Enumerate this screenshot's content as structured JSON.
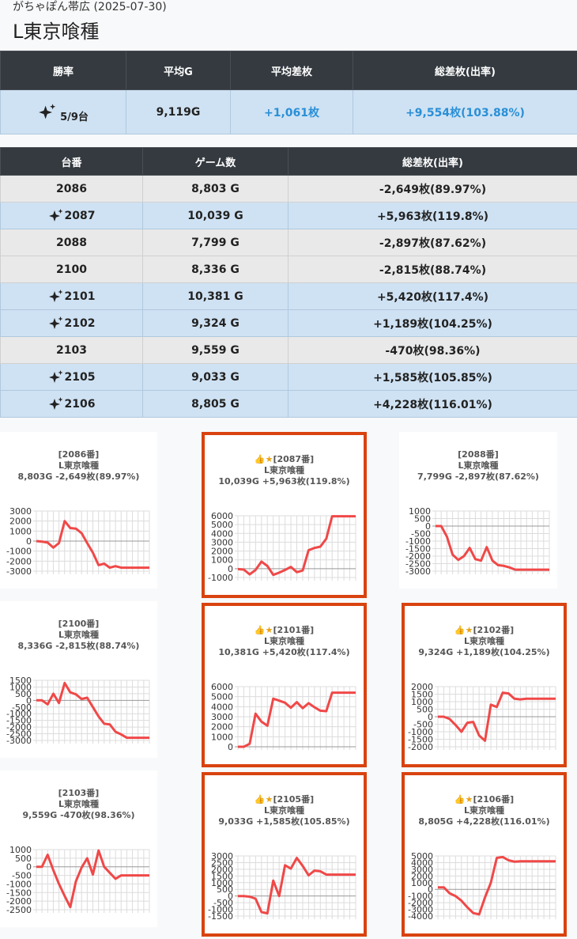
{
  "header": {
    "subtitle": "がちゃぽん帯広 (2025-07-30)",
    "title": "L東京喰種"
  },
  "summary": {
    "headers": [
      "勝率",
      "平均G",
      "平均差枚",
      "総差枚(出率)"
    ],
    "win_rate": "5/9台",
    "avg_games": "9,119G",
    "avg_diff": "+1,061枚",
    "total_diff": "+9,554枚(103.88%)"
  },
  "machines": {
    "headers": [
      "台番",
      "ゲーム数",
      "総差枚(出率)"
    ],
    "rows": [
      {
        "id": "2086",
        "games": "8,803 G",
        "diff": "-2,649枚(89.97%)",
        "win": false
      },
      {
        "id": "2087",
        "games": "10,039 G",
        "diff": "+5,963枚(119.8%)",
        "win": true
      },
      {
        "id": "2088",
        "games": "7,799 G",
        "diff": "-2,897枚(87.62%)",
        "win": false
      },
      {
        "id": "2100",
        "games": "8,336 G",
        "diff": "-2,815枚(88.74%)",
        "win": false
      },
      {
        "id": "2101",
        "games": "10,381 G",
        "diff": "+5,420枚(117.4%)",
        "win": true
      },
      {
        "id": "2102",
        "games": "9,324 G",
        "diff": "+1,189枚(104.25%)",
        "win": true
      },
      {
        "id": "2103",
        "games": "9,559 G",
        "diff": "-470枚(98.36%)",
        "win": false
      },
      {
        "id": "2105",
        "games": "9,033 G",
        "diff": "+1,585枚(105.85%)",
        "win": true
      },
      {
        "id": "2106",
        "games": "8,805 G",
        "diff": "+4,228枚(116.01%)",
        "win": true
      }
    ]
  },
  "charts": [
    {
      "label": "[2086番]",
      "model": "L東京喰種",
      "stats": "8,803G -2,649枚(89.97%)",
      "highlight": false,
      "ticks": [
        "3000",
        "2000",
        "1000",
        "0",
        "-1000",
        "-2000",
        "-3000"
      ],
      "ylim": [
        -3000,
        3000
      ],
      "values": [
        0,
        -50,
        -150,
        -650,
        -200,
        2000,
        1300,
        1250,
        800,
        -200,
        -1150,
        -2400,
        -2250,
        -2650,
        -2500,
        -2650,
        -2650,
        -2650,
        -2650,
        -2650,
        -2650
      ]
    },
    {
      "label": "[2087番]",
      "model": "L東京喰種",
      "stats": "10,039G +5,963枚(119.8%)",
      "highlight": true,
      "icons": "👍★",
      "ticks": [
        "6000",
        "5000",
        "4000",
        "3000",
        "2000",
        "1000",
        "0",
        "-1000"
      ],
      "ylim": [
        -1000,
        6000
      ],
      "values": [
        -50,
        -100,
        -650,
        -150,
        800,
        300,
        -700,
        -450,
        -150,
        200,
        -400,
        -200,
        2100,
        2350,
        2500,
        3400,
        5950,
        5950,
        5950,
        5950,
        5950
      ]
    },
    {
      "label": "[2088番]",
      "model": "L東京喰種",
      "stats": "7,799G -2,897枚(87.62%)",
      "highlight": false,
      "ticks": [
        "1000",
        "500",
        "0",
        "-500",
        "-1000",
        "-1500",
        "-2000",
        "-2500",
        "-3000"
      ],
      "ylim": [
        -3000,
        1000
      ],
      "values": [
        0,
        0,
        -700,
        -1900,
        -2250,
        -2000,
        -1450,
        -2200,
        -2300,
        -1400,
        -2300,
        -2600,
        -2650,
        -2750,
        -2900,
        -2900,
        -2900,
        -2900,
        -2900,
        -2900,
        -2900
      ]
    },
    {
      "label": "[2100番]",
      "model": "L東京喰種",
      "stats": "8,336G -2,815枚(88.74%)",
      "highlight": false,
      "ticks": [
        "1500",
        "1000",
        "500",
        "0",
        "-500",
        "-1000",
        "-1500",
        "-2000",
        "-2500",
        "-3000"
      ],
      "ylim": [
        -3000,
        1500
      ],
      "values": [
        0,
        0,
        -300,
        500,
        -200,
        1300,
        600,
        450,
        100,
        200,
        -500,
        -1200,
        -1750,
        -1800,
        -2350,
        -2550,
        -2800,
        -2800,
        -2800,
        -2800,
        -2800
      ]
    },
    {
      "label": "[2101番]",
      "model": "L東京喰種",
      "stats": "10,381G +5,420枚(117.4%)",
      "highlight": true,
      "icons": "👍★",
      "ticks": [
        "6000",
        "5000",
        "4000",
        "3000",
        "2000",
        "1000",
        "0"
      ],
      "ylim": [
        0,
        6000
      ],
      "values": [
        0,
        0,
        300,
        3300,
        2500,
        2100,
        4800,
        4600,
        4400,
        3900,
        4450,
        3850,
        4350,
        3950,
        3600,
        3550,
        5400,
        5400,
        5400,
        5400,
        5400
      ]
    },
    {
      "label": "[2102番]",
      "model": "L東京喰種",
      "stats": "9,324G +1,189枚(104.25%)",
      "highlight": true,
      "icons": "👍★",
      "ticks": [
        "2000",
        "1500",
        "1000",
        "500",
        "0",
        "-500",
        "-1000",
        "-1500",
        "-2000"
      ],
      "ylim": [
        -2000,
        2000
      ],
      "values": [
        0,
        0,
        -150,
        -550,
        -1000,
        -400,
        -350,
        -1250,
        -1600,
        800,
        650,
        1600,
        1550,
        1200,
        1150,
        1200,
        1200,
        1200,
        1200,
        1200,
        1200
      ]
    },
    {
      "label": "[2103番]",
      "model": "L東京喰種",
      "stats": "9,559G -470枚(98.36%)",
      "highlight": false,
      "ticks": [
        "1000",
        "500",
        "0",
        "-500",
        "-1000",
        "-1500",
        "-2000",
        "-2500"
      ],
      "ylim": [
        -2500,
        1000
      ],
      "values": [
        0,
        0,
        700,
        -200,
        -1000,
        -1700,
        -2350,
        -850,
        -50,
        500,
        -450,
        950,
        0,
        -350,
        -700,
        -500,
        -500,
        -500,
        -500,
        -500,
        -500
      ]
    },
    {
      "label": "[2105番]",
      "model": "L東京喰種",
      "stats": "9,033G +1,585枚(105.85%)",
      "highlight": true,
      "icons": "👍★",
      "ticks": [
        "3000",
        "2500",
        "2000",
        "1500",
        "1000",
        "500",
        "0",
        "-500",
        "-1000",
        "-1500"
      ],
      "ylim": [
        -1500,
        3000
      ],
      "values": [
        0,
        0,
        -50,
        -200,
        -1200,
        -1300,
        1150,
        0,
        2300,
        2050,
        2850,
        2250,
        1550,
        1900,
        1850,
        1600,
        1600,
        1600,
        1600,
        1600,
        1600
      ]
    },
    {
      "label": "[2106番]",
      "model": "L東京喰種",
      "stats": "8,805G +4,228枚(116.01%)",
      "highlight": true,
      "icons": "👍★",
      "ticks": [
        "5000",
        "4000",
        "3000",
        "2000",
        "1000",
        "0",
        "-1000",
        "-2000",
        "-3000",
        "-4000"
      ],
      "ylim": [
        -4000,
        5000
      ],
      "values": [
        300,
        300,
        -600,
        -1000,
        -1700,
        -2700,
        -3550,
        -3750,
        -1200,
        1000,
        4700,
        4850,
        4350,
        4150,
        4200,
        4200,
        4200,
        4200,
        4200,
        4200,
        4200
      ]
    }
  ],
  "colors": {
    "win_row": "#cfe2f3",
    "lose_row": "#e9e9e9",
    "header": "#343a40",
    "positive_text": "#2a8fd6",
    "highlight_border": "#d9430f",
    "line": "#f04848"
  },
  "icons": {
    "sparkle": "sparkles-icon",
    "thumb": "thumbs-up-icon",
    "star": "star-icon"
  }
}
